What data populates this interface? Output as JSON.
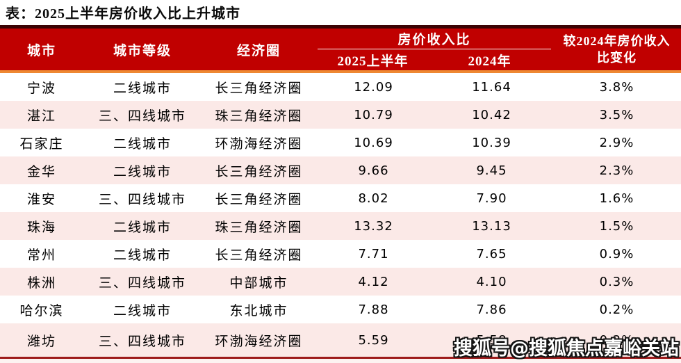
{
  "page": {
    "title": "表：2025上半年房价收入比上升城市"
  },
  "table": {
    "headers": {
      "city": "城市",
      "tier": "城市等级",
      "region": "经济圈",
      "ratio_group": "房价收入比",
      "ratio_2025h1": "2025上半年",
      "ratio_2024": "2024年",
      "change_line1": "较2024年房价收入",
      "change_line2": "比变化"
    },
    "rows": [
      {
        "city": "宁波",
        "tier": "二线城市",
        "region": "长三角经济圈",
        "h1_2025": "12.09",
        "y2024": "11.64",
        "change": "3.8%"
      },
      {
        "city": "湛江",
        "tier": "三、四线城市",
        "region": "珠三角经济圈",
        "h1_2025": "10.79",
        "y2024": "10.42",
        "change": "3.5%"
      },
      {
        "city": "石家庄",
        "tier": "二线城市",
        "region": "环渤海经济圈",
        "h1_2025": "10.69",
        "y2024": "10.39",
        "change": "2.9%"
      },
      {
        "city": "金华",
        "tier": "二线城市",
        "region": "长三角经济圈",
        "h1_2025": "9.66",
        "y2024": "9.45",
        "change": "2.3%"
      },
      {
        "city": "淮安",
        "tier": "三、四线城市",
        "region": "长三角经济圈",
        "h1_2025": "8.02",
        "y2024": "7.90",
        "change": "1.6%"
      },
      {
        "city": "珠海",
        "tier": "二线城市",
        "region": "珠三角经济圈",
        "h1_2025": "13.32",
        "y2024": "13.13",
        "change": "1.5%"
      },
      {
        "city": "常州",
        "tier": "二线城市",
        "region": "长三角经济圈",
        "h1_2025": "7.71",
        "y2024": "7.65",
        "change": "0.9%"
      },
      {
        "city": "株洲",
        "tier": "三、四线城市",
        "region": "中部城市",
        "h1_2025": "4.12",
        "y2024": "4.10",
        "change": "0.3%"
      },
      {
        "city": "哈尔滨",
        "tier": "二线城市",
        "region": "东北城市",
        "h1_2025": "7.88",
        "y2024": "7.86",
        "change": "0.2%"
      },
      {
        "city": "潍坊",
        "tier": "三、四线城市",
        "region": "环渤海经济圈",
        "h1_2025": "5.59",
        "y2024": "5.58",
        "change": "0.2%"
      }
    ]
  },
  "watermark": {
    "text": "搜狐号@搜狐焦点嘉峪关站"
  },
  "colors": {
    "header_bg": "#c00000",
    "header_text": "#ffffff",
    "accent_orange_rule": "#ee8833",
    "top_border": "#3b0304",
    "bottom_border": "#9e1b1b",
    "row_alt_pink": "#fbe9e7",
    "row_white": "#ffffff",
    "body_text": "#000000"
  },
  "chart_data": {
    "type": "table",
    "title": "表：2025上半年房价收入比上升城市",
    "columns": [
      "城市",
      "城市等级",
      "经济圈",
      "房价收入比 2025上半年",
      "房价收入比 2024年",
      "较2024年房价收入比变化"
    ],
    "rows": [
      [
        "宁波",
        "二线城市",
        "长三角经济圈",
        12.09,
        11.64,
        "3.8%"
      ],
      [
        "湛江",
        "三、四线城市",
        "珠三角经济圈",
        10.79,
        10.42,
        "3.5%"
      ],
      [
        "石家庄",
        "二线城市",
        "环渤海经济圈",
        10.69,
        10.39,
        "2.9%"
      ],
      [
        "金华",
        "二线城市",
        "长三角经济圈",
        9.66,
        9.45,
        "2.3%"
      ],
      [
        "淮安",
        "三、四线城市",
        "长三角经济圈",
        8.02,
        7.9,
        "1.6%"
      ],
      [
        "珠海",
        "二线城市",
        "珠三角经济圈",
        13.32,
        13.13,
        "1.5%"
      ],
      [
        "常州",
        "二线城市",
        "长三角经济圈",
        7.71,
        7.65,
        "0.9%"
      ],
      [
        "株洲",
        "三、四线城市",
        "中部城市",
        4.12,
        4.1,
        "0.3%"
      ],
      [
        "哈尔滨",
        "二线城市",
        "东北城市",
        7.88,
        7.86,
        "0.2%"
      ],
      [
        "潍坊",
        "三、四线城市",
        "环渤海经济圈",
        5.59,
        5.58,
        "0.2%"
      ]
    ]
  }
}
